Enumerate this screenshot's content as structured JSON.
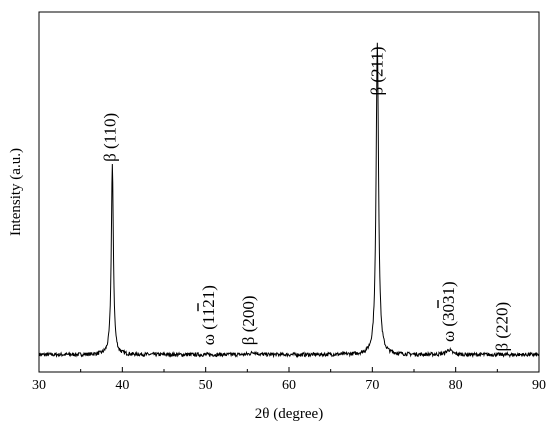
{
  "chart_data": {
    "type": "line",
    "xlabel": "2θ (degree)",
    "ylabel": "Intensity (a.u.)",
    "xlim": [
      30,
      90
    ],
    "xticks": [
      30,
      40,
      50,
      60,
      70,
      80,
      90
    ],
    "grid": false,
    "legend": "none",
    "y_scale": "arbitrary units, no ticks",
    "baseline_level": 0.02,
    "peaks": [
      {
        "center": 38.8,
        "height": 0.6,
        "width": 0.3
      },
      {
        "center": 70.6,
        "height": 0.99,
        "width": 0.35
      },
      {
        "center": 79.2,
        "height": 0.015,
        "width": 0.8
      },
      {
        "center": 55.8,
        "height": 0.008,
        "width": 0.8
      }
    ],
    "annotations": [
      {
        "text": "β (110)",
        "x": 39.2,
        "y": 0.63,
        "overline": ""
      },
      {
        "text": "ω (1121)",
        "x": 51.0,
        "y": 0.05,
        "overline": "1"
      },
      {
        "text": "β (200)",
        "x": 55.8,
        "y": 0.05,
        "overline": ""
      },
      {
        "text": "β (211)",
        "x": 71.2,
        "y": 0.84,
        "overline": ""
      },
      {
        "text": "ω (3031)",
        "x": 79.8,
        "y": 0.06,
        "overline": "3"
      },
      {
        "text": "β (220)",
        "x": 86.2,
        "y": 0.03,
        "overline": ""
      }
    ],
    "color": "#000000"
  }
}
